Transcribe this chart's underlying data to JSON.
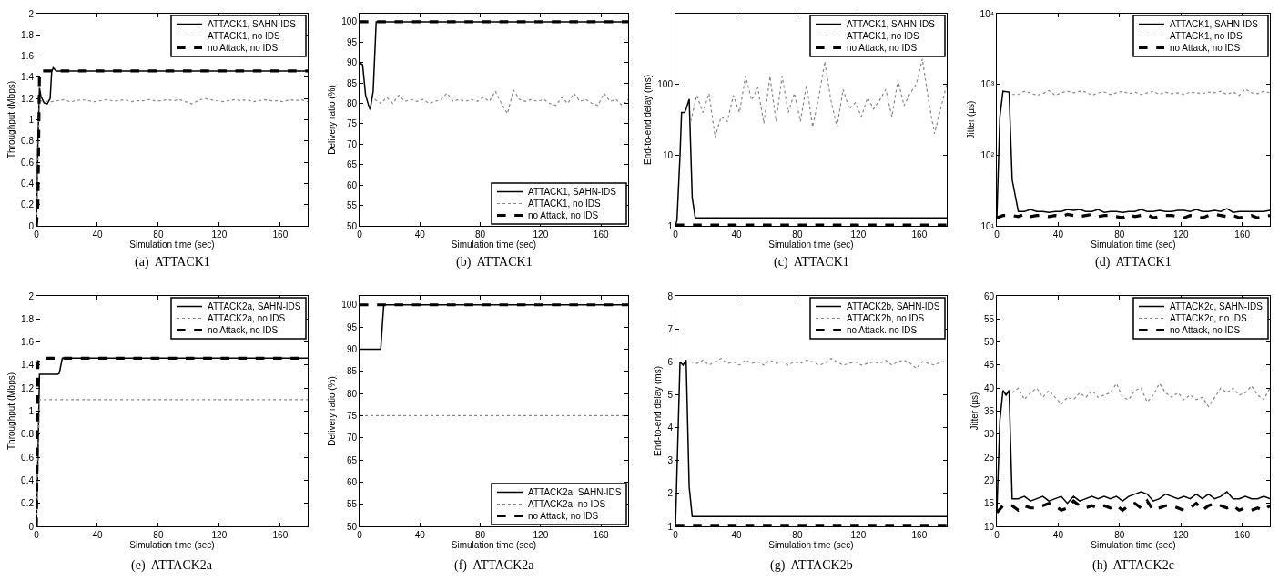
{
  "chart_data": [
    {
      "type": "line",
      "title": "(a)  ATTACK1",
      "xlabel": "Simulation time (sec)",
      "ylabel": "Throughput (Mbps)",
      "xlim": [
        0,
        178
      ],
      "xticks": [
        0,
        40,
        80,
        120,
        160
      ],
      "ylim": [
        0,
        2
      ],
      "yticks": [
        0,
        0.2,
        0.4,
        0.6,
        0.8,
        1,
        1.2,
        1.4,
        1.6,
        1.8,
        2
      ],
      "legend": "top right",
      "series": [
        {
          "name": "ATTACK1, SAHN-IDS",
          "color": "#000000",
          "line_style": "solid",
          "x": [
            0,
            1,
            2,
            3,
            5,
            7,
            9,
            10,
            11,
            13,
            178
          ],
          "values": [
            0,
            0.8,
            1.3,
            1.22,
            1.16,
            1.15,
            1.2,
            1.45,
            1.49,
            1.46,
            1.46
          ]
        },
        {
          "name": "ATTACK1, no IDS",
          "color": "#888888",
          "line_style": "dotted",
          "x": [
            0,
            2,
            10,
            14,
            18,
            22,
            26,
            30,
            34,
            38,
            42,
            46,
            50,
            54,
            58,
            62,
            66,
            70,
            74,
            78,
            82,
            86,
            90,
            94,
            98,
            102,
            106,
            110,
            114,
            118,
            122,
            126,
            130,
            134,
            138,
            142,
            146,
            150,
            154,
            158,
            162,
            166,
            170,
            174,
            178
          ],
          "values": [
            0,
            1.18,
            1.17,
            1.18,
            1.19,
            1.17,
            1.18,
            1.19,
            1.18,
            1.17,
            1.18,
            1.19,
            1.18,
            1.18,
            1.19,
            1.17,
            1.18,
            1.18,
            1.19,
            1.18,
            1.18,
            1.19,
            1.18,
            1.19,
            1.17,
            1.15,
            1.18,
            1.2,
            1.19,
            1.18,
            1.17,
            1.18,
            1.19,
            1.18,
            1.19,
            1.17,
            1.18,
            1.19,
            1.18,
            1.18,
            1.17,
            1.19,
            1.18,
            1.19,
            1.17
          ]
        },
        {
          "name": "no Attack, no IDS",
          "color": "#000000",
          "line_style": "dashed",
          "x": [
            0,
            1,
            2,
            3,
            178
          ],
          "values": [
            0,
            0.2,
            1.42,
            1.46,
            1.46
          ]
        }
      ]
    },
    {
      "type": "line",
      "title": "(b)  ATTACK1",
      "xlabel": "Simulation time (sec)",
      "ylabel": "Delivery ratio (%)",
      "xlim": [
        0,
        178
      ],
      "xticks": [
        0,
        40,
        80,
        120,
        160
      ],
      "ylim": [
        50,
        102
      ],
      "yticks": [
        50,
        55,
        60,
        65,
        70,
        75,
        80,
        85,
        90,
        95,
        100
      ],
      "legend": "bottom right",
      "series": [
        {
          "name": "ATTACK1, SAHN-IDS",
          "color": "#000000",
          "line_style": "solid",
          "x": [
            0,
            2,
            4,
            6,
            7,
            9,
            11,
            178
          ],
          "values": [
            90,
            89.5,
            82,
            79.5,
            78.5,
            83,
            100,
            100
          ]
        },
        {
          "name": "ATTACK1, no IDS",
          "color": "#888888",
          "line_style": "dotted",
          "x": [
            10,
            14,
            18,
            22,
            26,
            30,
            34,
            38,
            42,
            46,
            50,
            54,
            58,
            62,
            66,
            70,
            74,
            78,
            82,
            86,
            90,
            94,
            98,
            102,
            106,
            110,
            114,
            118,
            122,
            126,
            130,
            134,
            138,
            142,
            146,
            150,
            154,
            158,
            162,
            166,
            170,
            174,
            178
          ],
          "values": [
            81,
            80,
            81.5,
            80,
            82,
            80.5,
            81,
            80.5,
            81,
            80,
            80.5,
            81,
            82.5,
            80.5,
            81,
            80.5,
            81,
            80.5,
            81.5,
            80.5,
            83,
            80,
            77.5,
            83.3,
            81,
            80.5,
            81,
            80.5,
            81,
            80,
            79.5,
            81.5,
            80,
            82.5,
            80.5,
            81,
            80,
            79.5,
            82.5,
            80.5,
            81,
            79.5,
            81
          ]
        },
        {
          "name": "no Attack, no IDS",
          "color": "#000000",
          "line_style": "dashed",
          "x": [
            0,
            178
          ],
          "values": [
            100,
            100
          ]
        }
      ]
    },
    {
      "type": "line",
      "title": "(c)  ATTACK1",
      "xlabel": "Simulation time (sec)",
      "ylabel": "End-to-end delay (ms)",
      "xlim": [
        0,
        178
      ],
      "xticks": [
        0,
        40,
        80,
        120,
        160
      ],
      "ylim": [
        1,
        1000
      ],
      "yticks": [
        1,
        10,
        100
      ],
      "log": "y",
      "legend": "top right",
      "series": [
        {
          "name": "ATTACK1, SAHN-IDS",
          "color": "#000000",
          "line_style": "solid",
          "x": [
            0,
            1,
            3,
            4,
            6,
            7,
            9,
            11,
            13,
            178
          ],
          "values": [
            1,
            1.2,
            10,
            40,
            40,
            45,
            62,
            2.5,
            1.3,
            1.3
          ]
        },
        {
          "name": "ATTACK1, no IDS",
          "color": "#888888",
          "line_style": "dotted",
          "x": [
            10,
            14,
            18,
            22,
            26,
            30,
            34,
            38,
            42,
            46,
            50,
            54,
            58,
            62,
            66,
            70,
            74,
            78,
            82,
            86,
            90,
            94,
            98,
            102,
            106,
            110,
            114,
            118,
            122,
            126,
            130,
            134,
            138,
            142,
            146,
            150,
            154,
            158,
            162,
            166,
            170,
            174,
            178
          ],
          "values": [
            30,
            70,
            40,
            75,
            18,
            35,
            30,
            70,
            40,
            130,
            60,
            90,
            28,
            130,
            30,
            130,
            40,
            75,
            30,
            100,
            25,
            65,
            210,
            60,
            25,
            85,
            45,
            55,
            35,
            65,
            45,
            60,
            85,
            35,
            115,
            50,
            75,
            100,
            230,
            60,
            20,
            45,
            100
          ]
        },
        {
          "name": "no Attack, no IDS",
          "color": "#000000",
          "line_style": "dashed",
          "x": [
            0,
            178
          ],
          "values": [
            1.03,
            1.03
          ]
        }
      ]
    },
    {
      "type": "line",
      "title": "(d)  ATTACK1",
      "xlabel": "Simulation time (sec)",
      "ylabel": "Jitter (µs)",
      "xlim": [
        0,
        178
      ],
      "xticks": [
        0,
        40,
        80,
        120,
        160
      ],
      "ylim": [
        10,
        10000
      ],
      "yticks": [
        {
          "value": 10,
          "label": "10¹"
        },
        {
          "value": 100,
          "label": "10²"
        },
        {
          "value": 1000,
          "label": "10³"
        },
        {
          "value": 10000,
          "label": "10⁴"
        }
      ],
      "log": "y",
      "legend": "top right",
      "series": [
        {
          "name": "ATTACK1, SAHN-IDS",
          "color": "#000000",
          "line_style": "solid",
          "x": [
            0,
            2,
            4,
            8,
            10,
            14,
            18,
            22,
            26,
            30,
            34,
            38,
            42,
            46,
            50,
            54,
            58,
            62,
            66,
            70,
            74,
            78,
            82,
            86,
            90,
            94,
            98,
            102,
            106,
            110,
            114,
            118,
            122,
            126,
            130,
            134,
            138,
            142,
            146,
            150,
            154,
            158,
            162,
            166,
            170,
            174,
            178
          ],
          "values": [
            13,
            350,
            800,
            780,
            45,
            16,
            16,
            17,
            16,
            16,
            15.5,
            16,
            16,
            17,
            16.5,
            17,
            16,
            16,
            17,
            15.5,
            16,
            16,
            15.5,
            16,
            16,
            17,
            16,
            16,
            16.5,
            16,
            16,
            16.5,
            16.5,
            16,
            17,
            16,
            16,
            16.5,
            16,
            17.5,
            15.5,
            16,
            16,
            16,
            16,
            16,
            16.5
          ]
        },
        {
          "name": "ATTACK1, no IDS",
          "color": "#888888",
          "line_style": "dotted",
          "x": [
            10,
            14,
            18,
            22,
            26,
            30,
            34,
            38,
            42,
            46,
            50,
            54,
            58,
            62,
            66,
            70,
            74,
            78,
            82,
            86,
            90,
            94,
            98,
            102,
            106,
            110,
            114,
            118,
            122,
            126,
            130,
            134,
            138,
            142,
            146,
            150,
            154,
            158,
            162,
            166,
            170,
            174,
            178
          ],
          "values": [
            720,
            720,
            800,
            760,
            700,
            740,
            820,
            700,
            760,
            800,
            760,
            800,
            780,
            700,
            760,
            780,
            720,
            760,
            800,
            740,
            780,
            720,
            760,
            800,
            720,
            780,
            740,
            760,
            720,
            780,
            760,
            740,
            780,
            760,
            800,
            720,
            780,
            700,
            860,
            760,
            740,
            800,
            760
          ]
        },
        {
          "name": "no Attack, no IDS",
          "color": "#000000",
          "line_style": "dashed",
          "x": [
            0,
            4,
            10,
            14,
            18,
            22,
            26,
            30,
            34,
            38,
            42,
            46,
            50,
            54,
            58,
            62,
            66,
            70,
            74,
            78,
            82,
            86,
            90,
            94,
            98,
            102,
            106,
            110,
            114,
            118,
            122,
            126,
            130,
            134,
            138,
            142,
            146,
            150,
            154,
            158,
            162,
            166,
            170,
            174,
            178
          ],
          "values": [
            13,
            14,
            14,
            13.5,
            14.5,
            13.5,
            14,
            14,
            13.5,
            14,
            13.5,
            14.5,
            14,
            13.5,
            14,
            14.5,
            13.5,
            14,
            14,
            13.5,
            13,
            14.5,
            13.5,
            14,
            14.5,
            13,
            13.5,
            14,
            14,
            13.5,
            13,
            14,
            13.5,
            13,
            14,
            14.5,
            14,
            13.5,
            14,
            13,
            13.5,
            14,
            13,
            13.5,
            14
          ]
        }
      ]
    },
    {
      "type": "line",
      "title": "(e)  ATTACK2a",
      "xlabel": "Simulation time (sec)",
      "ylabel": "Throughput (Mbps)",
      "xlim": [
        0,
        178
      ],
      "xticks": [
        0,
        40,
        80,
        120,
        160
      ],
      "ylim": [
        0,
        2
      ],
      "yticks": [
        0,
        0.2,
        0.4,
        0.6,
        0.8,
        1,
        1.2,
        1.4,
        1.6,
        1.8,
        2
      ],
      "legend": "top right",
      "series": [
        {
          "name": "ATTACK2a, SAHN-IDS",
          "color": "#000000",
          "line_style": "solid",
          "x": [
            0,
            1,
            2,
            3,
            14,
            15,
            17,
            178
          ],
          "values": [
            0,
            0.6,
            1.32,
            1.32,
            1.32,
            1.33,
            1.46,
            1.46
          ]
        },
        {
          "name": "ATTACK2a, no IDS",
          "color": "#888888",
          "line_style": "dotted",
          "x": [
            0,
            1,
            2,
            178
          ],
          "values": [
            0,
            0.5,
            1.1,
            1.1
          ]
        },
        {
          "name": "no Attack, no IDS",
          "color": "#000000",
          "line_style": "dashed",
          "x": [
            0,
            1,
            2,
            178
          ],
          "values": [
            0,
            1.42,
            1.46,
            1.46
          ]
        }
      ]
    },
    {
      "type": "line",
      "title": "(f)  ATTACK2a",
      "xlabel": "Simulation time (sec)",
      "ylabel": "Delivery ratio (%)",
      "xlim": [
        0,
        178
      ],
      "xticks": [
        0,
        40,
        80,
        120,
        160
      ],
      "ylim": [
        50,
        102
      ],
      "yticks": [
        50,
        55,
        60,
        65,
        70,
        75,
        80,
        85,
        90,
        95,
        100
      ],
      "legend": "bottom right",
      "series": [
        {
          "name": "ATTACK2a, SAHN-IDS",
          "color": "#000000",
          "line_style": "solid",
          "x": [
            0,
            14,
            16,
            178
          ],
          "values": [
            90,
            90,
            100,
            100
          ]
        },
        {
          "name": "ATTACK2a, no IDS",
          "color": "#888888",
          "line_style": "dotted",
          "x": [
            0,
            178
          ],
          "values": [
            75,
            75
          ]
        },
        {
          "name": "no Attack, no IDS",
          "color": "#000000",
          "line_style": "dashed",
          "x": [
            0,
            178
          ],
          "values": [
            100,
            100
          ]
        }
      ]
    },
    {
      "type": "line",
      "title": "(g)  ATTACK2b",
      "xlabel": "Simulation time (sec)",
      "ylabel": "End-to-end delay (ms)",
      "xlim": [
        0,
        178
      ],
      "xticks": [
        0,
        40,
        80,
        120,
        160
      ],
      "ylim": [
        1,
        8
      ],
      "yticks": [
        1,
        2,
        3,
        4,
        5,
        6,
        7,
        8
      ],
      "legend": "top right",
      "series": [
        {
          "name": "ATTACK2b, SAHN-IDS",
          "color": "#000000",
          "line_style": "solid",
          "x": [
            0,
            3,
            5,
            7,
            9,
            11,
            178
          ],
          "values": [
            1,
            6,
            5.9,
            6.05,
            2.2,
            1.3,
            1.3
          ]
        },
        {
          "name": "ATTACK2b, no IDS",
          "color": "#888888",
          "line_style": "dotted",
          "x": [
            10,
            14,
            18,
            22,
            26,
            30,
            34,
            38,
            42,
            46,
            50,
            54,
            58,
            62,
            66,
            70,
            74,
            78,
            82,
            86,
            90,
            94,
            98,
            102,
            106,
            110,
            114,
            118,
            122,
            126,
            130,
            134,
            138,
            142,
            146,
            150,
            154,
            158,
            162,
            166,
            170,
            174,
            178
          ],
          "values": [
            6,
            5.95,
            6.05,
            5.9,
            6,
            6.1,
            5.95,
            6,
            5.9,
            6.05,
            5.95,
            6,
            5.9,
            6.05,
            5.95,
            6,
            5.9,
            6,
            5.95,
            6.05,
            6,
            5.9,
            5.95,
            6.1,
            6,
            5.9,
            5.95,
            6,
            5.9,
            5.95,
            6,
            5.95,
            6.05,
            5.9,
            6,
            6.05,
            5.95,
            5.8,
            6,
            5.95,
            5.9,
            6,
            6
          ]
        },
        {
          "name": "no Attack. no IDS",
          "color": "#000000",
          "line_style": "dashed",
          "x": [
            0,
            178
          ],
          "values": [
            1.03,
            1.03
          ]
        }
      ]
    },
    {
      "type": "line",
      "title": "(h)  ATTACK2c",
      "xlabel": "Simulation time (sec)",
      "ylabel": "Jitter (µs)",
      "xlim": [
        0,
        178
      ],
      "xticks": [
        0,
        40,
        80,
        120,
        160
      ],
      "ylim": [
        10,
        60
      ],
      "yticks": [
        10,
        15,
        20,
        25,
        30,
        35,
        40,
        45,
        50,
        55,
        60
      ],
      "legend": "top right",
      "series": [
        {
          "name": "ATTACK2c, SAHN-IDS",
          "color": "#000000",
          "line_style": "solid",
          "x": [
            0,
            2,
            4,
            6,
            8,
            10,
            14,
            18,
            22,
            26,
            30,
            34,
            38,
            42,
            46,
            50,
            54,
            58,
            62,
            66,
            70,
            74,
            78,
            82,
            86,
            90,
            94,
            98,
            102,
            106,
            110,
            114,
            118,
            122,
            126,
            130,
            134,
            138,
            142,
            146,
            150,
            154,
            158,
            162,
            166,
            170,
            174,
            178
          ],
          "values": [
            13,
            33,
            39.5,
            38.5,
            39.5,
            16,
            16,
            16.5,
            15.5,
            16,
            16.5,
            15.5,
            16,
            16.5,
            15,
            16.5,
            15.5,
            16,
            16.5,
            16,
            16.5,
            16,
            16.5,
            15.5,
            16.5,
            17,
            17.5,
            17,
            15.5,
            16,
            17,
            16.5,
            16,
            16.5,
            16,
            17,
            16,
            17,
            16,
            16.5,
            17.5,
            16,
            16,
            16.5,
            16,
            16,
            16.5,
            16
          ]
        },
        {
          "name": "ATTACK2c, no IDS",
          "color": "#888888",
          "line_style": "dotted",
          "x": [
            10,
            14,
            18,
            22,
            26,
            30,
            34,
            38,
            42,
            46,
            50,
            54,
            58,
            62,
            66,
            70,
            74,
            78,
            82,
            86,
            90,
            94,
            98,
            102,
            106,
            110,
            114,
            118,
            122,
            126,
            130,
            134,
            138,
            142,
            146,
            150,
            154,
            158,
            162,
            166,
            170,
            174,
            178
          ],
          "values": [
            39,
            40,
            37.5,
            39,
            40,
            38,
            39.5,
            38,
            36.5,
            38,
            37.5,
            39,
            38,
            39.5,
            38,
            38.5,
            39,
            41,
            38,
            37.5,
            39.5,
            40,
            37,
            38.5,
            41,
            39,
            38,
            39,
            37.5,
            38.5,
            37.5,
            38,
            36,
            38,
            40,
            39,
            40,
            38.5,
            39,
            40.5,
            38.5,
            37.5,
            40
          ]
        },
        {
          "name": "no Attack, no IDS",
          "color": "#000000",
          "line_style": "dashed",
          "x": [
            0,
            4,
            10,
            14,
            18,
            22,
            26,
            30,
            34,
            38,
            42,
            46,
            50,
            54,
            58,
            62,
            66,
            70,
            74,
            78,
            82,
            86,
            90,
            94,
            98,
            102,
            106,
            110,
            114,
            118,
            122,
            126,
            130,
            134,
            138,
            142,
            146,
            150,
            154,
            158,
            162,
            166,
            170,
            174,
            178
          ],
          "values": [
            13,
            14.5,
            14.5,
            13.5,
            14.5,
            14,
            14,
            14.5,
            15,
            14.5,
            13.5,
            14,
            15.5,
            14.5,
            14,
            14.5,
            14,
            14.5,
            14,
            14.5,
            13.5,
            14.5,
            15,
            14,
            15.5,
            13.5,
            14,
            14.5,
            14.5,
            14,
            13.5,
            14,
            15,
            13.5,
            14.5,
            15,
            14.5,
            14,
            14.5,
            13.5,
            14,
            13.5,
            14,
            13.5,
            14.5
          ]
        }
      ]
    }
  ]
}
